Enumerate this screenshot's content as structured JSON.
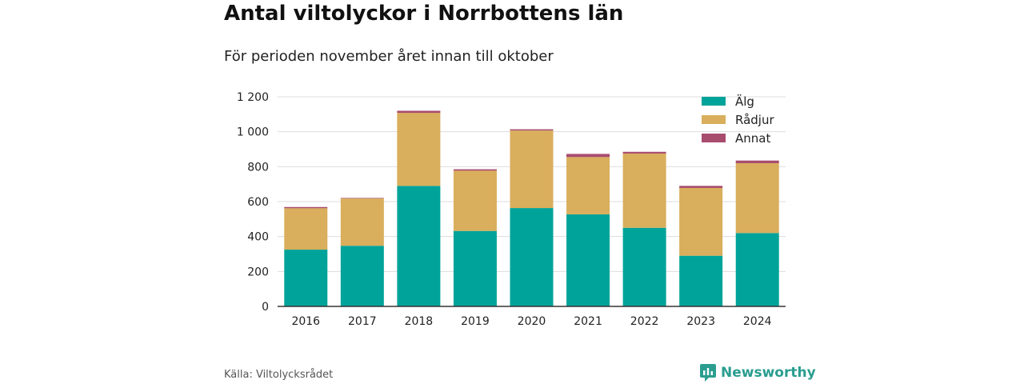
{
  "title": "Antal viltolyckor i Norrbottens län",
  "subtitle": "För perioden november året innan till oktober",
  "source": "Källa: Viltolycksrådet",
  "brand": {
    "name": "Newsworthy",
    "icon": "newsworthy-logo-icon",
    "color": "#2a9d8f"
  },
  "chart_data": {
    "type": "bar",
    "stacked": true,
    "categories": [
      "2016",
      "2017",
      "2018",
      "2019",
      "2020",
      "2021",
      "2022",
      "2023",
      "2024"
    ],
    "series": [
      {
        "name": "Älg",
        "color": "#00a39a",
        "values": [
          325,
          347,
          690,
          432,
          563,
          527,
          450,
          290,
          420
        ]
      },
      {
        "name": "Rådjur",
        "color": "#d9ae5c",
        "values": [
          237,
          271,
          418,
          345,
          444,
          328,
          425,
          388,
          400
        ]
      },
      {
        "name": "Annat",
        "color": "#a84c6e",
        "values": [
          7,
          3,
          12,
          8,
          7,
          18,
          10,
          12,
          15
        ]
      }
    ],
    "ylim": [
      0,
      1200
    ],
    "yticks": [
      0,
      200,
      400,
      600,
      800,
      1000,
      1200
    ],
    "ytick_labels": [
      "0",
      "200",
      "400",
      "600",
      "800",
      "1 000",
      "1 200"
    ],
    "grid": true,
    "legend": "top-right"
  }
}
